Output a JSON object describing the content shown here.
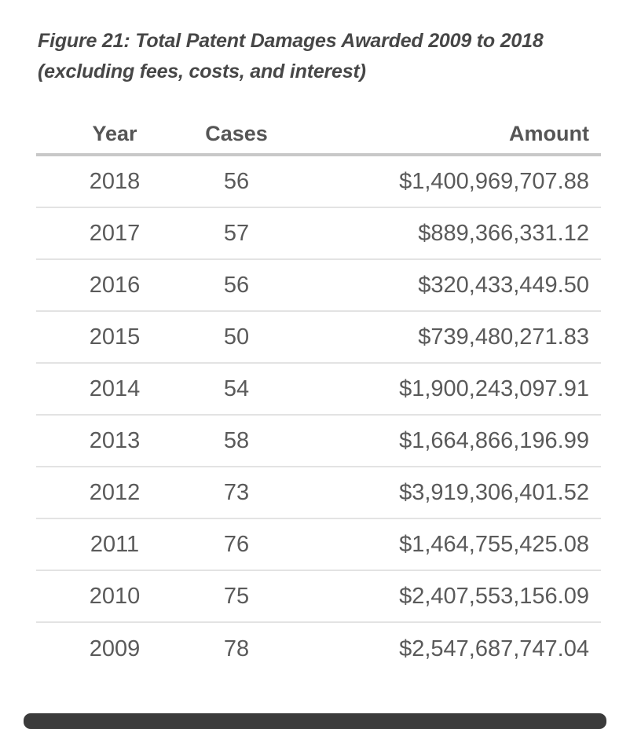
{
  "figure": {
    "caption_line1": "Figure 21: Total Patent Damages Awarded 2009 to 2018",
    "caption_line2": "(excluding fees, costs, and interest)"
  },
  "table": {
    "columns": [
      "Year",
      "Cases",
      "Amount"
    ],
    "rows": [
      {
        "year": "2018",
        "cases": "56",
        "amount": "$1,400,969,707.88"
      },
      {
        "year": "2017",
        "cases": "57",
        "amount": "$889,366,331.12"
      },
      {
        "year": "2016",
        "cases": "56",
        "amount": "$320,433,449.50"
      },
      {
        "year": "2015",
        "cases": "50",
        "amount": "$739,480,271.83"
      },
      {
        "year": "2014",
        "cases": "54",
        "amount": "$1,900,243,097.91"
      },
      {
        "year": "2013",
        "cases": "58",
        "amount": "$1,664,866,196.99"
      },
      {
        "year": "2012",
        "cases": "73",
        "amount": "$3,919,306,401.52"
      },
      {
        "year": "2011",
        "cases": "76",
        "amount": "$1,464,755,425.08"
      },
      {
        "year": "2010",
        "cases": "75",
        "amount": "$2,407,553,156.09"
      },
      {
        "year": "2009",
        "cases": "78",
        "amount": "$2,547,687,747.04"
      }
    ]
  },
  "chart_data": {
    "type": "table",
    "title": "Figure 21: Total Patent Damages Awarded 2009 to 2018 (excluding fees, costs, and interest)",
    "columns": [
      "Year",
      "Cases",
      "Amount"
    ],
    "years": [
      2018,
      2017,
      2016,
      2015,
      2014,
      2013,
      2012,
      2011,
      2010,
      2009
    ],
    "cases": [
      56,
      57,
      56,
      50,
      54,
      58,
      73,
      76,
      75,
      78
    ],
    "amounts_usd": [
      1400969707.88,
      889366331.12,
      320433449.5,
      739480271.83,
      1900243097.91,
      1664866196.99,
      3919306401.52,
      1464755425.08,
      2407553156.09,
      2547687747.04
    ]
  },
  "colors": {
    "background": "#ffffff",
    "title_text": "#474747",
    "header_text": "#555555",
    "cell_text": "#5a5a5a",
    "header_rule": "#c8c8c8",
    "row_rule": "#e3e3e3",
    "scrollbar_thumb": "#3b3b3b"
  }
}
